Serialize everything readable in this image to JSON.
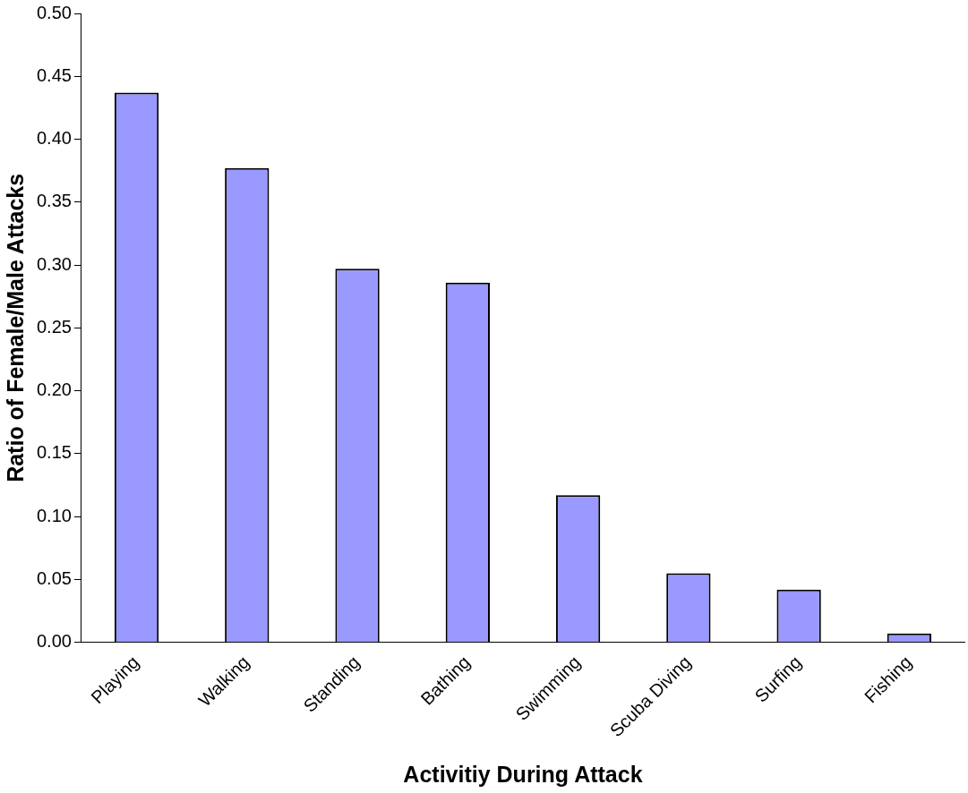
{
  "chart_data": {
    "type": "bar",
    "xlabel": "Activitiy During Attack",
    "ylabel": "Ratio of Female/Male Attacks",
    "categories": [
      "Playing",
      "Walking",
      "Standing",
      "Bathing",
      "Swimming",
      "Scuba Diving",
      "Surfing",
      "Fishing"
    ],
    "values": [
      0.437,
      0.377,
      0.297,
      0.286,
      0.117,
      0.055,
      0.042,
      0.007
    ],
    "color": "#9999ff",
    "ylim": [
      0,
      0.5
    ],
    "yticks": [
      {
        "value": 0,
        "label": "0.00"
      },
      {
        "value": 0.05,
        "label": "0.05"
      },
      {
        "value": 0.1,
        "label": "0.10"
      },
      {
        "value": 0.15,
        "label": "0.15"
      },
      {
        "value": 0.2,
        "label": "0.20"
      },
      {
        "value": 0.25,
        "label": "0.25"
      },
      {
        "value": 0.3,
        "label": "0.30"
      },
      {
        "value": 0.35,
        "label": "0.35"
      },
      {
        "value": 0.4,
        "label": "0.40"
      },
      {
        "value": 0.45,
        "label": "0.45"
      },
      {
        "value": 0.5,
        "label": "0.50"
      }
    ],
    "grid": false,
    "legend": false
  }
}
